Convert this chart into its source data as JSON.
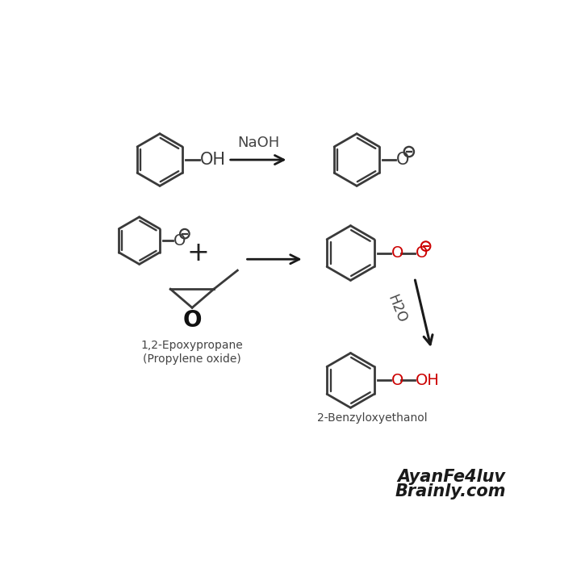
{
  "bg_color": "#ffffff",
  "line_color": "#3a3a3a",
  "red_color": "#cc0000",
  "arrow_color": "#1a1a1a",
  "text_color": "#444444",
  "watermark_color": "#1a1a1a",
  "watermark1": "AyanFe4luv",
  "watermark2": "Brainly.com",
  "label_epoxy": "1,2-Epoxypropane\n(Propylene oxide)",
  "label_product": "2-Benzyloxyethanol",
  "label_naoh": "NaOH",
  "label_h2o": "H2O",
  "figsize": [
    7.2,
    7.2
  ],
  "dpi": 100
}
